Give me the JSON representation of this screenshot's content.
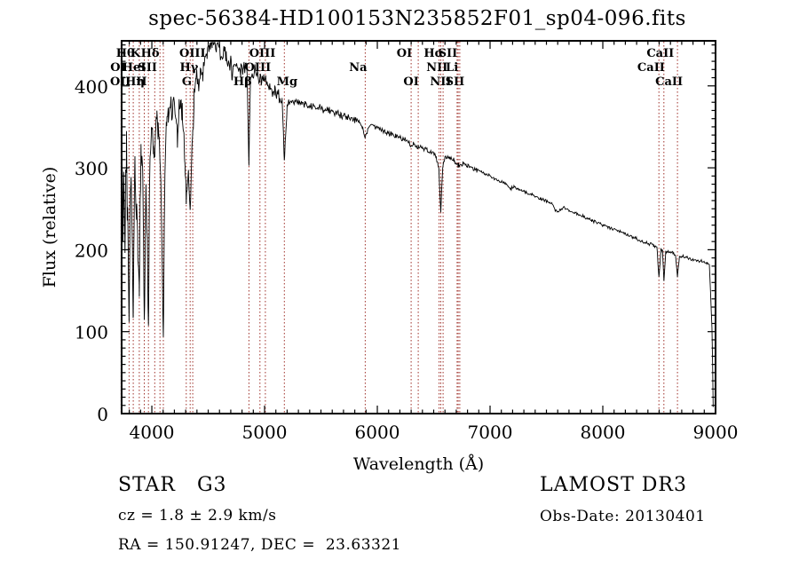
{
  "title": "spec-56384-HD100153N235852F01_sp04-096.fits",
  "colors": {
    "trace": "#000000",
    "marker": "#9e2f28",
    "frame": "#000000",
    "background": "#ffffff"
  },
  "footer": {
    "class_label": "STAR   G3",
    "survey": "LAMOST DR3",
    "cz": "cz = 1.8 ± 2.9 km/s",
    "obs_date": "Obs-Date: 20130401",
    "ra_dec": "RA = 150.91247, DEC =  23.63321"
  },
  "chart_data": {
    "type": "line",
    "title": "spec-56384-HD100153N235852F01_sp04-096.fits",
    "xlabel": "Wavelength (Å)",
    "ylabel": "Flux (relative)",
    "xlim": [
      3732,
      9000
    ],
    "ylim": [
      0,
      455
    ],
    "xticks": [
      4000,
      5000,
      6000,
      7000,
      8000,
      9000
    ],
    "yticks": [
      0,
      100,
      200,
      300,
      400
    ],
    "x_minor_step": 100,
    "y_minor_step": 10,
    "grid": false,
    "legend": "none",
    "noise_seed": 987654321,
    "noise_regions": [
      [
        3732,
        4090,
        30
      ],
      [
        4090,
        4460,
        20
      ],
      [
        4460,
        5150,
        12
      ],
      [
        5150,
        5900,
        6
      ],
      [
        5900,
        6900,
        4
      ],
      [
        6900,
        8940,
        2.5
      ]
    ],
    "line_markers": [
      3727,
      3798,
      3835,
      3889,
      3933,
      3970,
      4026,
      4072,
      4102,
      4305,
      4340,
      4363,
      4861,
      4959,
      5007,
      5175,
      5893,
      6300,
      6363,
      6548,
      6563,
      6583,
      6708,
      6717,
      6731,
      8498,
      8542,
      8662
    ],
    "line_labels": [
      {
        "text": "Hθ",
        "row": 1,
        "wl": 3765
      },
      {
        "text": "K",
        "row": 1,
        "wl": 3855
      },
      {
        "text": "Hδ",
        "row": 1,
        "wl": 3985
      },
      {
        "text": "OIII",
        "row": 1,
        "wl": 4360
      },
      {
        "text": "OIII",
        "row": 1,
        "wl": 4980
      },
      {
        "text": "OI",
        "row": 1,
        "wl": 6240
      },
      {
        "text": "Hα",
        "row": 1,
        "wl": 6500
      },
      {
        "text": "SII",
        "row": 1,
        "wl": 6625
      },
      {
        "text": "CaII",
        "row": 1,
        "wl": 8510
      },
      {
        "text": "OI",
        "row": 2,
        "wl": 3700
      },
      {
        "text": "HeI",
        "row": 2,
        "wl": 3843
      },
      {
        "text": "SII",
        "row": 2,
        "wl": 3962
      },
      {
        "text": "Hγ",
        "row": 2,
        "wl": 4330
      },
      {
        "text": "OIII",
        "row": 2,
        "wl": 4940
      },
      {
        "text": "Na",
        "row": 2,
        "wl": 5830
      },
      {
        "text": "NII",
        "row": 2,
        "wl": 6530
      },
      {
        "text": "Li",
        "row": 2,
        "wl": 6662
      },
      {
        "text": "CaII",
        "row": 2,
        "wl": 8428
      },
      {
        "text": "OII",
        "row": 3,
        "wl": 3722
      },
      {
        "text": "Hη",
        "row": 3,
        "wl": 3850
      },
      {
        "text": "H",
        "row": 3,
        "wl": 3908
      },
      {
        "text": "G",
        "row": 3,
        "wl": 4310
      },
      {
        "text": "Hβ",
        "row": 3,
        "wl": 4805
      },
      {
        "text": "Mg",
        "row": 3,
        "wl": 5200
      },
      {
        "text": "OI",
        "row": 3,
        "wl": 6300
      },
      {
        "text": "NII",
        "row": 3,
        "wl": 6562
      },
      {
        "text": "SII",
        "row": 3,
        "wl": 6688
      },
      {
        "text": "CaII",
        "row": 3,
        "wl": 8587
      }
    ],
    "spectrum_anchors": [
      [
        3732,
        240
      ],
      [
        3738,
        300
      ],
      [
        3744,
        210
      ],
      [
        3750,
        300
      ],
      [
        3756,
        255
      ],
      [
        3762,
        175
      ],
      [
        3768,
        290
      ],
      [
        3775,
        320
      ],
      [
        3782,
        260
      ],
      [
        3790,
        200
      ],
      [
        3798,
        118
      ],
      [
        3806,
        250
      ],
      [
        3814,
        300
      ],
      [
        3822,
        260
      ],
      [
        3830,
        160
      ],
      [
        3835,
        105
      ],
      [
        3842,
        240
      ],
      [
        3850,
        305
      ],
      [
        3858,
        270
      ],
      [
        3866,
        255
      ],
      [
        3874,
        225
      ],
      [
        3882,
        180
      ],
      [
        3889,
        142
      ],
      [
        3896,
        250
      ],
      [
        3904,
        315
      ],
      [
        3912,
        330
      ],
      [
        3920,
        300
      ],
      [
        3926,
        230
      ],
      [
        3933,
        92
      ],
      [
        3940,
        200
      ],
      [
        3948,
        285
      ],
      [
        3956,
        230
      ],
      [
        3963,
        160
      ],
      [
        3970,
        112
      ],
      [
        3978,
        260
      ],
      [
        3986,
        330
      ],
      [
        3995,
        345
      ],
      [
        4005,
        355
      ],
      [
        4015,
        340
      ],
      [
        4026,
        305
      ],
      [
        4035,
        350
      ],
      [
        4045,
        362
      ],
      [
        4055,
        345
      ],
      [
        4065,
        330
      ],
      [
        4072,
        318
      ],
      [
        4080,
        290
      ],
      [
        4090,
        200
      ],
      [
        4102,
        100
      ],
      [
        4112,
        260
      ],
      [
        4122,
        330
      ],
      [
        4132,
        355
      ],
      [
        4145,
        362
      ],
      [
        4160,
        370
      ],
      [
        4180,
        368
      ],
      [
        4200,
        376
      ],
      [
        4215,
        355
      ],
      [
        4227,
        335
      ],
      [
        4240,
        368
      ],
      [
        4255,
        375
      ],
      [
        4270,
        365
      ],
      [
        4285,
        345
      ],
      [
        4295,
        300
      ],
      [
        4305,
        252
      ],
      [
        4315,
        280
      ],
      [
        4325,
        300
      ],
      [
        4332,
        270
      ],
      [
        4340,
        242
      ],
      [
        4350,
        300
      ],
      [
        4363,
        345
      ],
      [
        4375,
        385
      ],
      [
        4390,
        405
      ],
      [
        4410,
        412
      ],
      [
        4430,
        408
      ],
      [
        4450,
        418
      ],
      [
        4470,
        435
      ],
      [
        4490,
        440
      ],
      [
        4505,
        446
      ],
      [
        4520,
        452
      ],
      [
        4535,
        455
      ],
      [
        4545,
        450
      ],
      [
        4560,
        455
      ],
      [
        4575,
        448
      ],
      [
        4590,
        452
      ],
      [
        4605,
        444
      ],
      [
        4620,
        440
      ],
      [
        4640,
        442
      ],
      [
        4660,
        436
      ],
      [
        4680,
        432
      ],
      [
        4700,
        428
      ],
      [
        4713,
        415
      ],
      [
        4730,
        428
      ],
      [
        4750,
        426
      ],
      [
        4770,
        424
      ],
      [
        4790,
        422
      ],
      [
        4810,
        420
      ],
      [
        4830,
        420
      ],
      [
        4845,
        415
      ],
      [
        4861,
        310
      ],
      [
        4875,
        408
      ],
      [
        4890,
        418
      ],
      [
        4910,
        416
      ],
      [
        4930,
        413
      ],
      [
        4950,
        410
      ],
      [
        4970,
        408
      ],
      [
        4990,
        406
      ],
      [
        5010,
        403
      ],
      [
        5030,
        400
      ],
      [
        5050,
        398
      ],
      [
        5070,
        396
      ],
      [
        5090,
        393
      ],
      [
        5110,
        390
      ],
      [
        5130,
        388
      ],
      [
        5155,
        382
      ],
      [
        5167,
        340
      ],
      [
        5175,
        305
      ],
      [
        5185,
        335
      ],
      [
        5200,
        375
      ],
      [
        5220,
        380
      ],
      [
        5240,
        382
      ],
      [
        5260,
        380
      ],
      [
        5280,
        382
      ],
      [
        5300,
        380
      ],
      [
        5330,
        378
      ],
      [
        5360,
        379
      ],
      [
        5400,
        376
      ],
      [
        5440,
        374
      ],
      [
        5480,
        373
      ],
      [
        5520,
        371
      ],
      [
        5560,
        370
      ],
      [
        5600,
        369
      ],
      [
        5640,
        367
      ],
      [
        5680,
        365
      ],
      [
        5720,
        363
      ],
      [
        5760,
        361
      ],
      [
        5800,
        359
      ],
      [
        5840,
        357
      ],
      [
        5870,
        350
      ],
      [
        5893,
        336
      ],
      [
        5915,
        348
      ],
      [
        5940,
        352
      ],
      [
        5970,
        351
      ],
      [
        6000,
        349
      ],
      [
        6040,
        346
      ],
      [
        6080,
        343
      ],
      [
        6120,
        341
      ],
      [
        6160,
        338
      ],
      [
        6200,
        336
      ],
      [
        6240,
        334
      ],
      [
        6280,
        331
      ],
      [
        6300,
        326
      ],
      [
        6320,
        329
      ],
      [
        6363,
        325
      ],
      [
        6400,
        325
      ],
      [
        6440,
        322
      ],
      [
        6480,
        319
      ],
      [
        6520,
        314
      ],
      [
        6545,
        300
      ],
      [
        6563,
        246
      ],
      [
        6580,
        302
      ],
      [
        6600,
        313
      ],
      [
        6640,
        311
      ],
      [
        6680,
        309
      ],
      [
        6717,
        303
      ],
      [
        6731,
        302
      ],
      [
        6760,
        306
      ],
      [
        6800,
        303
      ],
      [
        6840,
        300
      ],
      [
        6880,
        297
      ],
      [
        6920,
        295
      ],
      [
        6960,
        292
      ],
      [
        7000,
        290
      ],
      [
        7050,
        286
      ],
      [
        7100,
        283
      ],
      [
        7150,
        280
      ],
      [
        7180,
        274
      ],
      [
        7210,
        277
      ],
      [
        7250,
        274
      ],
      [
        7300,
        271
      ],
      [
        7350,
        268
      ],
      [
        7400,
        265
      ],
      [
        7450,
        262
      ],
      [
        7500,
        259
      ],
      [
        7550,
        256
      ],
      [
        7590,
        246
      ],
      [
        7620,
        248
      ],
      [
        7650,
        251
      ],
      [
        7700,
        248
      ],
      [
        7750,
        245
      ],
      [
        7800,
        242
      ],
      [
        7850,
        239
      ],
      [
        7900,
        236
      ],
      [
        7950,
        233
      ],
      [
        8000,
        230
      ],
      [
        8050,
        227
      ],
      [
        8100,
        225
      ],
      [
        8150,
        222
      ],
      [
        8200,
        219
      ],
      [
        8250,
        216
      ],
      [
        8300,
        213
      ],
      [
        8350,
        210
      ],
      [
        8400,
        208
      ],
      [
        8450,
        205
      ],
      [
        8480,
        203
      ],
      [
        8498,
        166
      ],
      [
        8515,
        200
      ],
      [
        8530,
        199
      ],
      [
        8542,
        162
      ],
      [
        8558,
        198
      ],
      [
        8580,
        197
      ],
      [
        8620,
        196
      ],
      [
        8645,
        193
      ],
      [
        8662,
        168
      ],
      [
        8680,
        192
      ],
      [
        8720,
        191
      ],
      [
        8760,
        189
      ],
      [
        8800,
        188
      ],
      [
        8840,
        187
      ],
      [
        8880,
        186
      ],
      [
        8920,
        184
      ],
      [
        8945,
        182
      ],
      [
        8955,
        150
      ],
      [
        8962,
        125
      ],
      [
        8968,
        105
      ],
      [
        8974,
        60
      ],
      [
        8979,
        8
      ]
    ]
  }
}
